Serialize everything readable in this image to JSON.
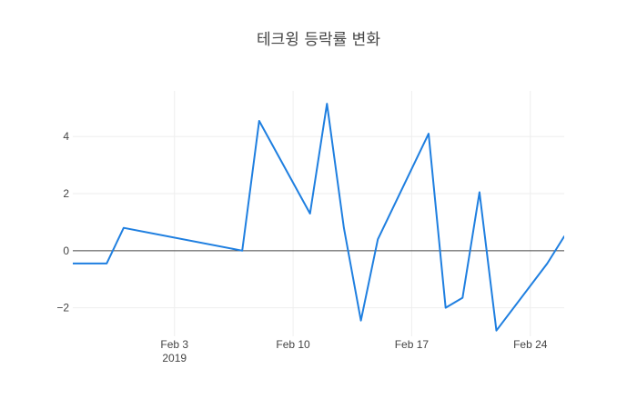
{
  "chart_data": {
    "type": "line",
    "title": "테크윙 등락률 변화",
    "xlabel": "",
    "ylabel": "",
    "x": [
      "2019-01-28",
      "2019-01-29",
      "2019-01-30",
      "2019-01-31",
      "2019-02-07",
      "2019-02-08",
      "2019-02-11",
      "2019-02-12",
      "2019-02-13",
      "2019-02-14",
      "2019-02-15",
      "2019-02-18",
      "2019-02-19",
      "2019-02-20",
      "2019-02-21",
      "2019-02-22",
      "2019-02-25",
      "2019-02-26",
      "2019-02-27"
    ],
    "series": [
      {
        "color": "#1f7fe0",
        "values": [
          -0.45,
          -0.45,
          -0.45,
          0.8,
          0.0,
          4.55,
          1.3,
          5.15,
          0.8,
          -2.45,
          0.4,
          4.1,
          -2.0,
          -1.65,
          2.05,
          -2.8,
          -0.45,
          0.5,
          0.5
        ]
      }
    ],
    "x_range": [
      "2019-01-28",
      "2019-02-26"
    ],
    "ylim": [
      -3.0,
      5.6
    ],
    "xticks": [
      {
        "date": "2019-02-03",
        "label": "Feb 3",
        "sublabel": "2019"
      },
      {
        "date": "2019-02-10",
        "label": "Feb 10",
        "sublabel": ""
      },
      {
        "date": "2019-02-17",
        "label": "Feb 17",
        "sublabel": ""
      },
      {
        "date": "2019-02-24",
        "label": "Feb 24",
        "sublabel": ""
      }
    ],
    "yticks": [
      {
        "value": -2,
        "label": "−2"
      },
      {
        "value": 0,
        "label": "0"
      },
      {
        "value": 2,
        "label": "2"
      },
      {
        "value": 4,
        "label": "4"
      }
    ],
    "grid": true,
    "legend": "none"
  }
}
